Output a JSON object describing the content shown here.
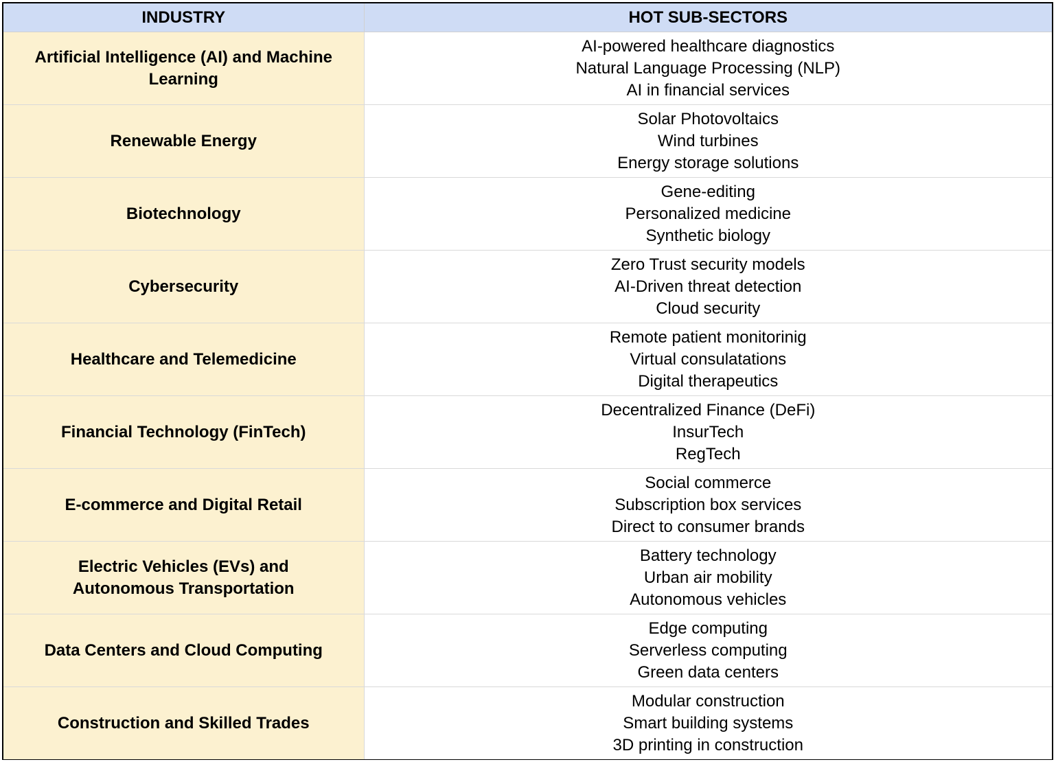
{
  "table": {
    "headers": {
      "industry": "INDUSTRY",
      "subsectors": "HOT SUB-SECTORS"
    },
    "rows": [
      {
        "industry": "Artificial Intelligence (AI) and Machine Learning",
        "subsectors": [
          "AI-powered healthcare diagnostics",
          "Natural Language Processing (NLP)",
          "AI in financial services"
        ]
      },
      {
        "industry": "Renewable Energy",
        "subsectors": [
          "Solar Photovoltaics",
          "Wind turbines",
          "Energy storage solutions"
        ]
      },
      {
        "industry": "Biotechnology",
        "subsectors": [
          "Gene-editing",
          "Personalized medicine",
          "Synthetic biology"
        ]
      },
      {
        "industry": "Cybersecurity",
        "subsectors": [
          "Zero Trust security models",
          "AI-Driven threat detection",
          "Cloud security"
        ]
      },
      {
        "industry": "Healthcare and Telemedicine",
        "subsectors": [
          "Remote patient monitorinig",
          "Virtual consulatations",
          "Digital therapeutics"
        ]
      },
      {
        "industry": "Financial Technology (FinTech)",
        "subsectors": [
          "Decentralized Finance (DeFi)",
          "InsurTech",
          "RegTech"
        ]
      },
      {
        "industry": "E-commerce and Digital Retail",
        "subsectors": [
          "Social commerce",
          "Subscription box services",
          "Direct to consumer brands"
        ]
      },
      {
        "industry": "Electric Vehicles (EVs) and Autonomous Transportation",
        "subsectors": [
          "Battery technology",
          "Urban air mobility",
          "Autonomous vehicles"
        ]
      },
      {
        "industry": "Data Centers and Cloud Computing",
        "subsectors": [
          "Edge computing",
          "Serverless computing",
          "Green data centers"
        ]
      },
      {
        "industry": "Construction and Skilled Trades",
        "subsectors": [
          "Modular construction",
          "Smart building systems",
          "3D printing in construction"
        ]
      }
    ]
  }
}
